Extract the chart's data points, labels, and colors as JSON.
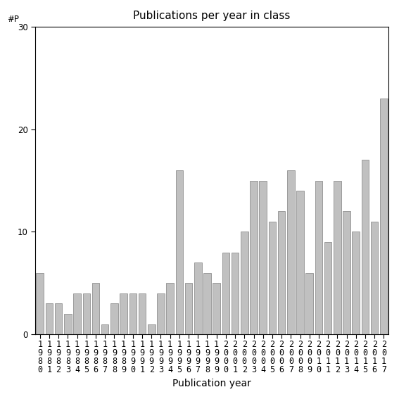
{
  "title": "Publications per year in class",
  "xlabel": "Publication year",
  "ylabel": "#P",
  "years": [
    "1980",
    "1981",
    "1982",
    "1983",
    "1984",
    "1985",
    "1986",
    "1987",
    "1988",
    "1989",
    "1990",
    "1991",
    "1992",
    "1993",
    "1994",
    "1995",
    "1996",
    "1997",
    "1998",
    "1999",
    "2000",
    "2001",
    "2002",
    "2003",
    "2004",
    "2005",
    "2006",
    "2007",
    "2008",
    "2009",
    "2010",
    "2011",
    "2012",
    "2013",
    "2014",
    "2015",
    "2016",
    "2017"
  ],
  "values": [
    6,
    3,
    3,
    2,
    4,
    4,
    5,
    1,
    3,
    4,
    4,
    4,
    1,
    4,
    5,
    16,
    5,
    7,
    6,
    5,
    8,
    8,
    10,
    15,
    15,
    11,
    12,
    16,
    14,
    6,
    15,
    9,
    15,
    12,
    10,
    17,
    11,
    23
  ],
  "bar_color": "#c0c0c0",
  "bar_edge_color": "#808080",
  "ylim": [
    0,
    30
  ],
  "yticks": [
    0,
    10,
    20,
    30
  ],
  "background_color": "#ffffff",
  "title_fontsize": 11,
  "label_fontsize": 10,
  "tick_fontsize": 8.5
}
